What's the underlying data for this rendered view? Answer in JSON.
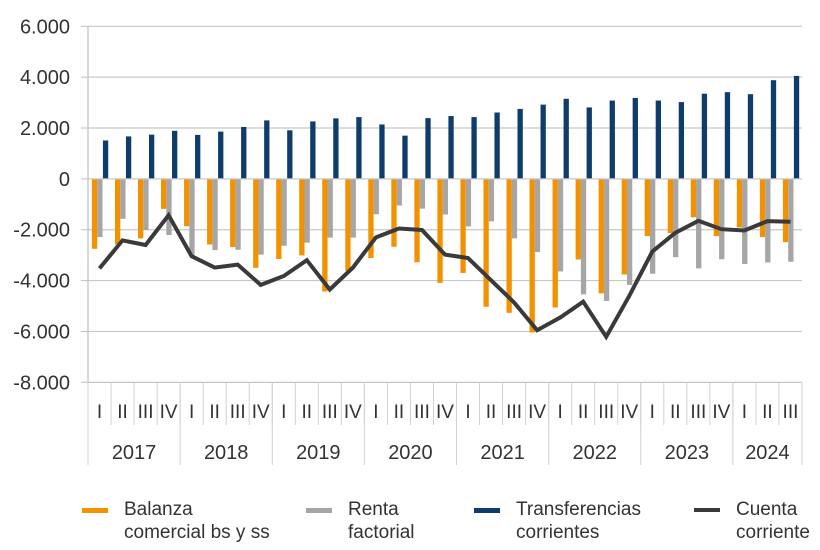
{
  "chart_data": {
    "type": "bar",
    "title": "",
    "xlabel": "",
    "ylabel": "",
    "ylim": [
      -8000,
      6000
    ],
    "yticks": [
      6000,
      4000,
      2000,
      0,
      -2000,
      -4000,
      -6000,
      -8000
    ],
    "ytick_labels": [
      "6.000",
      "4.000",
      "2.000",
      "0",
      "-2.000",
      "-4.000",
      "-6.000",
      "-8.000"
    ],
    "grid": true,
    "legend_position": "bottom",
    "categories": [
      "2017-I",
      "2017-II",
      "2017-III",
      "2017-IV",
      "2018-I",
      "2018-II",
      "2018-III",
      "2018-IV",
      "2019-I",
      "2019-II",
      "2019-III",
      "2019-IV",
      "2020-I",
      "2020-II",
      "2020-III",
      "2020-IV",
      "2021-I",
      "2021-II",
      "2021-III",
      "2021-IV",
      "2022-I",
      "2022-II",
      "2022-III",
      "2022-IV",
      "2023-I",
      "2023-II",
      "2023-III",
      "2023-IV",
      "2024-I",
      "2024-II",
      "2024-III"
    ],
    "quarter_labels": [
      "I",
      "II",
      "III",
      "IV",
      "I",
      "II",
      "III",
      "IV",
      "I",
      "II",
      "III",
      "IV",
      "I",
      "II",
      "III",
      "IV",
      "I",
      "II",
      "III",
      "IV",
      "I",
      "II",
      "III",
      "IV",
      "I",
      "II",
      "III",
      "IV",
      "I",
      "II",
      "III"
    ],
    "years": [
      {
        "label": "2017",
        "count": 4
      },
      {
        "label": "2018",
        "count": 4
      },
      {
        "label": "2019",
        "count": 4
      },
      {
        "label": "2020",
        "count": 4
      },
      {
        "label": "2021",
        "count": 4
      },
      {
        "label": "2022",
        "count": 4
      },
      {
        "label": "2023",
        "count": 4
      },
      {
        "label": "2024",
        "count": 3
      }
    ],
    "series": [
      {
        "name": "Balanza comercial bs y ss",
        "kind": "bar",
        "color": "#F39200",
        "values": [
          -2750,
          -2580,
          -2340,
          -1180,
          -1860,
          -2580,
          -2680,
          -3500,
          -3150,
          -3010,
          -4430,
          -3620,
          -3110,
          -2670,
          -3280,
          -4090,
          -3700,
          -5030,
          -5270,
          -6040,
          -5060,
          -3170,
          -4500,
          -3760,
          -2250,
          -2130,
          -1510,
          -2250,
          -1910,
          -2290,
          -2490
        ]
      },
      {
        "name": "Renta factorial",
        "kind": "bar",
        "color": "#A6A6A6",
        "values": [
          -2290,
          -1570,
          -2010,
          -2210,
          -3010,
          -2800,
          -2790,
          -2980,
          -2630,
          -2510,
          -2310,
          -2310,
          -1390,
          -1050,
          -1170,
          -1400,
          -1870,
          -1670,
          -2340,
          -2880,
          -3640,
          -4540,
          -4800,
          -4170,
          -3730,
          -3080,
          -3520,
          -3160,
          -3350,
          -3290,
          -3260
        ]
      },
      {
        "name": "Transferencias corrientes",
        "kind": "bar",
        "color": "#0F3D6B",
        "values": [
          1510,
          1670,
          1740,
          1890,
          1730,
          1860,
          2040,
          2300,
          1910,
          2260,
          2380,
          2430,
          2140,
          1700,
          2390,
          2470,
          2430,
          2610,
          2750,
          2920,
          3150,
          2810,
          3080,
          3180,
          3080,
          3020,
          3350,
          3410,
          3330,
          3880,
          4050
        ]
      },
      {
        "name": "Cuenta corriente",
        "kind": "line",
        "color": "#3A3A3A",
        "values": [
          -3520,
          -2420,
          -2600,
          -1430,
          -3040,
          -3490,
          -3370,
          -4170,
          -3820,
          -3200,
          -4350,
          -3490,
          -2300,
          -1950,
          -2010,
          -2980,
          -3110,
          -3990,
          -4860,
          -5950,
          -5450,
          -4830,
          -6210,
          -4600,
          -2860,
          -2120,
          -1650,
          -1980,
          -2030,
          -1660,
          -1690
        ]
      }
    ]
  },
  "legend": [
    {
      "label": "Balanza\ncomercial bs y ss",
      "color": "#F39200",
      "kind": "bar"
    },
    {
      "label": "Renta\nfactorial",
      "color": "#A6A6A6",
      "kind": "bar"
    },
    {
      "label": "Transferencias\ncorrientes",
      "color": "#0F3D6B",
      "kind": "bar"
    },
    {
      "label": "Cuenta\ncorriente",
      "color": "#3A3A3A",
      "kind": "line"
    }
  ]
}
